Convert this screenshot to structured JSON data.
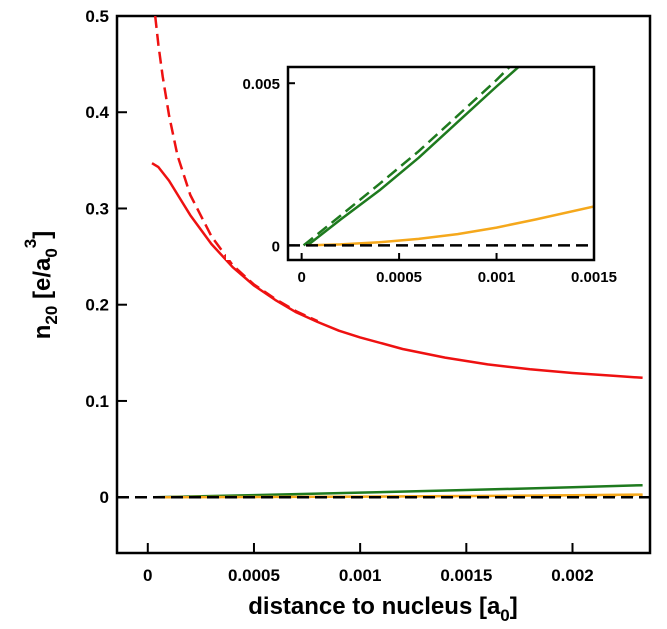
{
  "chart_data": {
    "type": "line",
    "title": "",
    "xlabel": {
      "main": "distance to nucleus [a",
      "sub": "0",
      "tail": "]"
    },
    "ylabel": {
      "main": "n",
      "sub": "20",
      "mid": " [e/a",
      "sub2": "0",
      "sup": "3",
      "tail": "]"
    },
    "xlim": [
      -0.000145,
      0.002365
    ],
    "ylim": [
      -0.058,
      0.5
    ],
    "x_ticks": [
      {
        "v": 0,
        "label": "0"
      },
      {
        "v": 0.0005,
        "label": "0.0005"
      },
      {
        "v": 0.001,
        "label": "0.001"
      },
      {
        "v": 0.0015,
        "label": "0.0015"
      },
      {
        "v": 0.002,
        "label": "0.002"
      }
    ],
    "y_ticks": [
      {
        "v": 0,
        "label": "0"
      },
      {
        "v": 0.1,
        "label": "0.1"
      },
      {
        "v": 0.2,
        "label": "0.2"
      },
      {
        "v": 0.3,
        "label": "0.3"
      },
      {
        "v": 0.4,
        "label": "0.4"
      },
      {
        "v": 0.5,
        "label": "0.5"
      }
    ],
    "grid": false,
    "legend": "none",
    "series": [
      {
        "color": "#ee1111",
        "dash": "dashed",
        "x": [
          3.5e-05,
          5e-05,
          7e-05,
          0.0001,
          0.00014,
          0.0002,
          0.0003,
          0.0004,
          0.0005,
          0.0006,
          0.0007,
          0.0008
        ],
        "y": [
          0.5,
          0.47,
          0.437,
          0.397,
          0.355,
          0.314,
          0.271,
          0.241,
          0.221,
          0.206,
          0.193,
          0.183
        ]
      },
      {
        "color": "#ee1111",
        "dash": "solid",
        "x": [
          2e-05,
          5e-05,
          0.0001,
          0.00015,
          0.0002,
          0.0003,
          0.0004,
          0.0005,
          0.0006,
          0.0007,
          0.0008,
          0.0009,
          0.001,
          0.0012,
          0.0014,
          0.0016,
          0.0018,
          0.002,
          0.0022,
          0.00233
        ],
        "y": [
          0.347,
          0.343,
          0.329,
          0.311,
          0.293,
          0.263,
          0.239,
          0.22,
          0.205,
          0.192,
          0.182,
          0.173,
          0.166,
          0.154,
          0.145,
          0.138,
          0.133,
          0.129,
          0.126,
          0.124
        ]
      },
      {
        "color": "#1e7a1e",
        "dash": "solid",
        "x": [
          3e-05,
          0.0005,
          0.001,
          0.0015,
          0.002,
          0.00233
        ],
        "y": [
          0,
          0.0022,
          0.0048,
          0.0075,
          0.0103,
          0.0124
        ]
      },
      {
        "color": "#f5a81c",
        "dash": "solid",
        "x": [
          3e-05,
          0.0005,
          0.001,
          0.0015,
          0.002,
          0.00233
        ],
        "y": [
          0,
          0.0002,
          0.0006,
          0.0012,
          0.002,
          0.0027
        ]
      },
      {
        "color": "#f5a81c",
        "dash": "dashed",
        "x": [
          3e-05,
          0.0005,
          0.001,
          0.0015,
          0.002,
          0.00233
        ],
        "y": [
          0,
          0.0001,
          0.0004,
          0.0009,
          0.0016,
          0.0021
        ]
      },
      {
        "color": "#000000",
        "dash": "dashed",
        "x": [
          -0.000145,
          0.002365
        ],
        "y": [
          0,
          0
        ]
      }
    ],
    "inset": {
      "xlim": [
        -7e-05,
        0.0015
      ],
      "ylim": [
        -0.00045,
        0.0055
      ],
      "x_ticks": [
        {
          "v": 0,
          "label": "0"
        },
        {
          "v": 0.0005,
          "label": "0.0005"
        },
        {
          "v": 0.001,
          "label": "0.001"
        },
        {
          "v": 0.0015,
          "label": "0.0015"
        }
      ],
      "y_ticks": [
        {
          "v": 0,
          "label": "0"
        },
        {
          "v": 0.005,
          "label": "0.005"
        }
      ],
      "series": [
        {
          "color": "#1e7a1e",
          "dash": "solid",
          "x": [
            3e-05,
            0.0002,
            0.0004,
            0.0006,
            0.0008,
            0.001,
            0.00115
          ],
          "y": [
            0,
            0.0008,
            0.0017,
            0.0027,
            0.0038,
            0.0049,
            0.0057
          ]
        },
        {
          "color": "#1e7a1e",
          "dash": "dashed",
          "x": [
            1e-05,
            0.0002,
            0.0004,
            0.0006,
            0.0008,
            0.001,
            0.0011
          ],
          "y": [
            0,
            0.00092,
            0.0019,
            0.0029,
            0.004,
            0.0051,
            0.0057
          ]
        },
        {
          "color": "#f5a81c",
          "dash": "solid",
          "x": [
            3e-05,
            0.0002,
            0.0004,
            0.0006,
            0.0008,
            0.001,
            0.0012,
            0.0015
          ],
          "y": [
            0,
            3e-05,
            0.0001,
            0.0002,
            0.00035,
            0.00055,
            0.0008,
            0.0012
          ]
        },
        {
          "color": "#000000",
          "dash": "dashed",
          "x": [
            -7e-05,
            0.0015
          ],
          "y": [
            0,
            0
          ]
        }
      ]
    }
  }
}
